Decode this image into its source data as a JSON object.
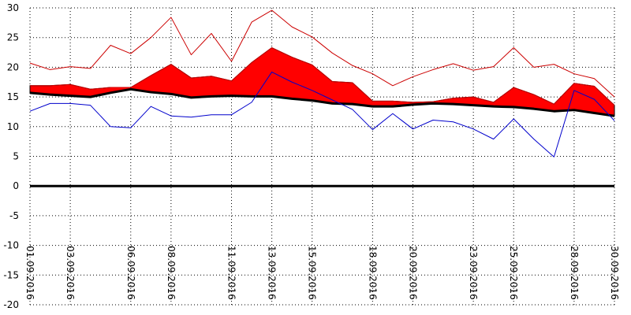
{
  "chart_data": {
    "type": "line",
    "title": "",
    "xlabel": "",
    "ylabel": "",
    "ylim": [
      -20,
      30
    ],
    "yticks": [
      30,
      25,
      20,
      15,
      10,
      5,
      0,
      -5,
      -10,
      -15,
      -20
    ],
    "grid": true,
    "legend": "none",
    "x": [
      "01.09.2016",
      "02.09.2016",
      "03.09.2016",
      "04.09.2016",
      "05.09.2016",
      "06.09.2016",
      "07.09.2016",
      "08.09.2016",
      "09.09.2016",
      "10.09.2016",
      "11.09.2016",
      "12.09.2016",
      "13.09.2016",
      "14.09.2016",
      "15.09.2016",
      "16.09.2016",
      "17.09.2016",
      "18.09.2016",
      "19.09.2016",
      "20.09.2016",
      "21.09.2016",
      "22.09.2016",
      "23.09.2016",
      "24.09.2016",
      "25.09.2016",
      "26.09.2016",
      "27.09.2016",
      "28.09.2016",
      "29.09.2016",
      "30.09.2016"
    ],
    "x_tick_labels": [
      "01.09.2016",
      "03.09.2016",
      "06.09.2016",
      "08.09.2016",
      "11.09.2016",
      "13.09.2016",
      "15.09.2016",
      "18.09.2016",
      "20.09.2016",
      "23.09.2016",
      "25.09.2016",
      "28.09.2016",
      "30.09.2016"
    ],
    "series": [
      {
        "key": "max",
        "color": "#cc0000",
        "values": [
          20.7,
          19.6,
          20.1,
          19.8,
          23.7,
          22.3,
          25.0,
          28.4,
          22.1,
          25.7,
          21.0,
          27.6,
          29.6,
          26.8,
          25.1,
          22.4,
          20.3,
          18.9,
          16.9,
          18.4,
          19.6,
          20.6,
          19.5,
          20.1,
          23.3,
          20.0,
          20.5,
          18.9,
          18.1,
          15.0
        ]
      },
      {
        "key": "mean",
        "color": "#cc0000",
        "values": [
          16.9,
          16.9,
          17.1,
          16.3,
          16.6,
          16.6,
          18.6,
          20.5,
          18.2,
          18.5,
          17.7,
          20.8,
          23.3,
          21.7,
          20.4,
          17.6,
          17.4,
          14.3,
          14.3,
          14.1,
          14.2,
          14.8,
          15.0,
          14.1,
          16.6,
          15.4,
          13.8,
          17.3,
          16.8,
          13.6
        ]
      },
      {
        "key": "normal",
        "color": "#000000",
        "values": [
          15.7,
          15.4,
          15.2,
          15.0,
          15.7,
          16.3,
          15.8,
          15.5,
          14.9,
          15.1,
          15.2,
          15.1,
          15.1,
          14.7,
          14.4,
          13.9,
          13.8,
          13.4,
          13.4,
          13.7,
          13.9,
          13.8,
          13.6,
          13.4,
          13.3,
          13.0,
          12.6,
          12.8,
          12.3,
          11.8
        ]
      },
      {
        "key": "min",
        "color": "#0000cc",
        "values": [
          12.6,
          13.9,
          13.9,
          13.6,
          10.0,
          9.8,
          13.4,
          11.8,
          11.6,
          12.0,
          12.0,
          14.1,
          19.2,
          17.5,
          16.1,
          14.5,
          12.9,
          9.5,
          12.2,
          9.6,
          11.1,
          10.8,
          9.6,
          7.9,
          11.3,
          7.9,
          4.9,
          16.1,
          14.6,
          11.0
        ]
      }
    ],
    "fill": {
      "between": [
        "mean",
        "normal"
      ],
      "above_color": "#ff0000"
    },
    "zero_line_color": "#000000"
  }
}
